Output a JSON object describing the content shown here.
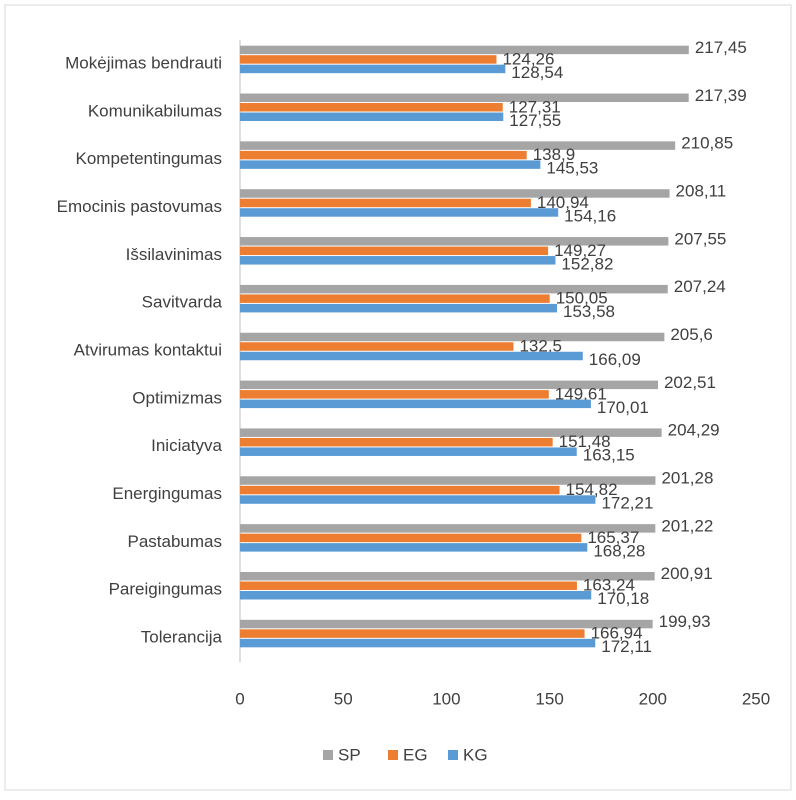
{
  "chart_data": {
    "type": "hbar",
    "categories": [
      "Mokėjimas bendrauti",
      "Komunikabilumas",
      "Kompetentingumas",
      "Emocinis pastovumas",
      "Išsilavinimas",
      "Savitvarda",
      "Atvirumas kontaktui",
      "Optimizmas",
      "Iniciatyva",
      "Energingumas",
      "Pastabumas",
      "Pareigingumas",
      "Tolerancija"
    ],
    "series": [
      {
        "name": "SP",
        "color": "#a5a5a5",
        "values": [
          217.45,
          217.39,
          210.85,
          208.11,
          207.55,
          207.24,
          205.6,
          202.51,
          204.29,
          201.28,
          201.22,
          200.91,
          199.93
        ],
        "value_labels": [
          "217,45",
          "217,39",
          "210,85",
          "208,11",
          "207,55",
          "207,24",
          "205,6",
          "202,51",
          "204,29",
          "201,28",
          "201,22",
          "200,91",
          "199,93"
        ]
      },
      {
        "name": "EG",
        "color": "#ed7d31",
        "values": [
          124.26,
          127.31,
          138.9,
          140.94,
          149.27,
          150.05,
          132.5,
          149.61,
          151.48,
          154.82,
          165.37,
          163.24,
          166.94
        ],
        "value_labels": [
          "124,26",
          "127,31",
          "138,9",
          "140,94",
          "149,27",
          "150,05",
          "132,5",
          "149,61",
          "151,48",
          "154,82",
          "165,37",
          "163,24",
          "166,94"
        ]
      },
      {
        "name": "KG",
        "color": "#5b9bd5",
        "values": [
          128.54,
          127.55,
          145.53,
          154.16,
          152.82,
          153.58,
          166.09,
          170.01,
          163.15,
          172.21,
          168.28,
          170.18,
          172.11
        ],
        "value_labels": [
          "128,54",
          "127,55",
          "145,53",
          "154,16",
          "152,82",
          "153,58",
          "166,09",
          "170,01",
          "163,15",
          "172,21",
          "168,28",
          "170,18",
          "172,11"
        ]
      }
    ],
    "xlim": [
      0,
      250
    ],
    "xticks": [
      0,
      50,
      100,
      150,
      200,
      250
    ],
    "grid": false,
    "legend": "bottom"
  }
}
